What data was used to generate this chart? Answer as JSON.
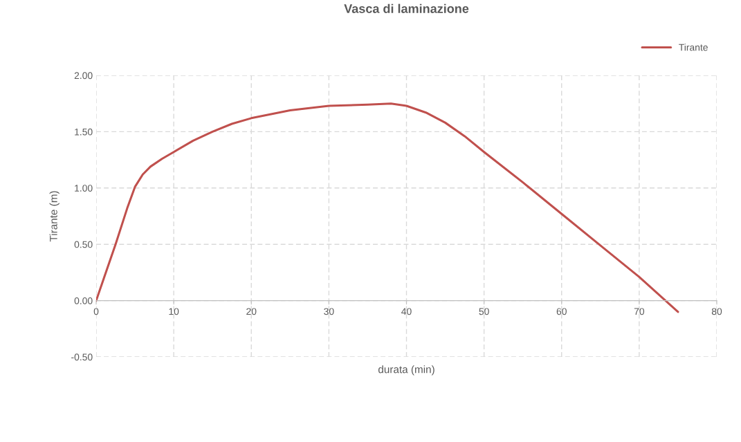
{
  "chart_data": {
    "type": "line",
    "title": "Vasca di laminazione",
    "xlabel": "durata (min)",
    "ylabel": "Tirante (m)",
    "series": [
      {
        "name": "Tirante",
        "color": "#c0504d",
        "x": [
          0,
          1,
          2.5,
          4,
          5,
          6,
          7,
          8.5,
          10,
          12.5,
          15,
          17.5,
          20,
          25,
          30,
          35,
          38,
          40,
          42.5,
          45,
          47.5,
          50,
          55,
          60,
          65,
          70,
          75
        ],
        "values": [
          0,
          0.2,
          0.5,
          0.82,
          1.01,
          1.12,
          1.19,
          1.26,
          1.32,
          1.42,
          1.5,
          1.57,
          1.62,
          1.69,
          1.73,
          1.74,
          1.75,
          1.73,
          1.67,
          1.58,
          1.46,
          1.32,
          1.05,
          0.77,
          0.49,
          0.21,
          -0.1
        ]
      }
    ],
    "xlim": [
      0,
      80
    ],
    "xticks": [
      0,
      10,
      20,
      30,
      40,
      50,
      60,
      70,
      80
    ],
    "ylim": [
      -0.5,
      2.0
    ],
    "yticks": [
      {
        "value": -0.5,
        "label": "-0.50"
      },
      {
        "value": 0,
        "label": "0.00"
      },
      {
        "value": 0.5,
        "label": "0.50"
      },
      {
        "value": 1.0,
        "label": "1.00"
      },
      {
        "value": 1.5,
        "label": "1.50"
      },
      {
        "value": 2.0,
        "label": "2.00"
      }
    ],
    "grid": true,
    "legend": "top right",
    "line_style": "solid"
  }
}
